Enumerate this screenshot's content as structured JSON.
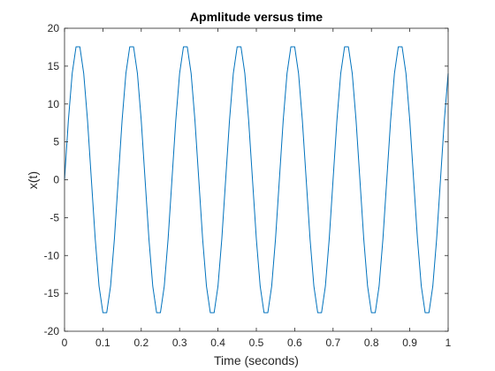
{
  "chart_data": {
    "type": "line",
    "title": "Apmlitude versus time",
    "xlabel": "Time (seconds)",
    "ylabel": "x(t)",
    "xlim": [
      0,
      1
    ],
    "ylim": [
      -20,
      20
    ],
    "xticks": [
      0,
      0.1,
      0.2,
      0.3,
      0.4,
      0.5,
      0.6,
      0.7,
      0.8,
      0.9,
      1
    ],
    "xtick_labels": [
      "0",
      "0.1",
      "0.2",
      "0.3",
      "0.4",
      "0.5",
      "0.6",
      "0.7",
      "0.8",
      "0.9",
      "1"
    ],
    "yticks": [
      -20,
      -15,
      -10,
      -5,
      0,
      5,
      10,
      15,
      20
    ],
    "ytick_labels": [
      "-20",
      "-15",
      "-10",
      "-5",
      "0",
      "5",
      "10",
      "15",
      "20"
    ],
    "grid": false,
    "box": true,
    "series": [
      {
        "color": "#0072BD",
        "x": [
          0,
          0.01,
          0.02,
          0.03,
          0.04,
          0.05,
          0.06,
          0.07,
          0.08,
          0.09,
          0.1,
          0.11,
          0.12,
          0.13,
          0.14,
          0.15,
          0.16,
          0.17,
          0.18,
          0.19,
          0.2,
          0.21,
          0.22,
          0.23,
          0.24,
          0.25,
          0.26,
          0.27,
          0.28,
          0.29,
          0.3,
          0.31,
          0.32,
          0.33,
          0.34,
          0.35,
          0.36,
          0.37,
          0.38,
          0.39,
          0.4,
          0.41,
          0.42,
          0.43,
          0.44,
          0.45,
          0.46,
          0.47,
          0.48,
          0.49,
          0.5,
          0.51,
          0.52,
          0.53,
          0.54,
          0.55,
          0.56,
          0.57,
          0.58,
          0.59,
          0.6,
          0.61,
          0.62,
          0.63,
          0.64,
          0.65,
          0.66,
          0.67,
          0.68,
          0.69,
          0.7,
          0.71,
          0.72,
          0.73,
          0.74,
          0.75,
          0.76,
          0.77,
          0.78,
          0.79,
          0.8,
          0.81,
          0.82,
          0.83,
          0.84,
          0.85,
          0.86,
          0.87,
          0.88,
          0.89,
          0.9,
          0.91,
          0.92,
          0.93,
          0.94,
          0.95,
          0.96,
          0.97,
          0.98,
          0.99,
          1.0
        ],
        "y": [
          0,
          7.81,
          14.05,
          17.55,
          17.55,
          14.05,
          7.81,
          0,
          -7.81,
          -14.05,
          -17.55,
          -17.55,
          -14.05,
          -7.81,
          0,
          7.81,
          14.05,
          17.55,
          17.55,
          14.05,
          7.81,
          0,
          -7.81,
          -14.05,
          -17.55,
          -17.55,
          -14.05,
          -7.81,
          0,
          7.81,
          14.05,
          17.55,
          17.55,
          14.05,
          7.81,
          0,
          -7.81,
          -14.05,
          -17.55,
          -17.55,
          -14.05,
          -7.81,
          0,
          7.81,
          14.05,
          17.55,
          17.55,
          14.05,
          7.81,
          0,
          -7.81,
          -14.05,
          -17.55,
          -17.55,
          -14.05,
          -7.81,
          0,
          7.81,
          14.05,
          17.55,
          17.55,
          14.05,
          7.81,
          0,
          -7.81,
          -14.05,
          -17.55,
          -17.55,
          -14.05,
          -7.81,
          0,
          7.81,
          14.05,
          17.55,
          17.55,
          14.05,
          7.81,
          0,
          -7.81,
          -14.05,
          -17.55,
          -17.55,
          -14.05,
          -7.81,
          0,
          7.81,
          14.05,
          17.55,
          17.55,
          14.05,
          7.81,
          0,
          -7.81,
          -14.05,
          -17.55,
          -17.55,
          -14.05,
          -7.81,
          0,
          7.81,
          14.05
        ]
      }
    ]
  }
}
